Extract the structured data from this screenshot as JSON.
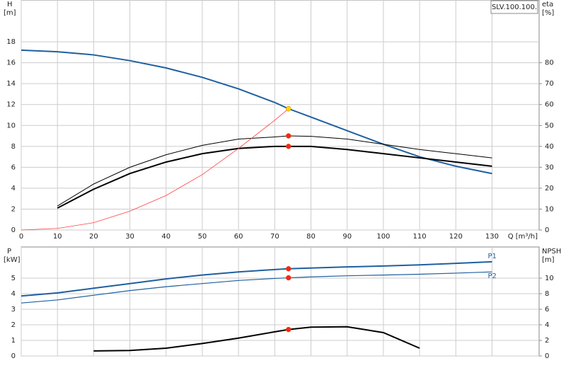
{
  "chart_data": [
    {
      "type": "line",
      "label": "SLV.100.100.",
      "ylabel": "H",
      "ylabel_unit": "[m]",
      "y2label": "eta",
      "y2label_unit": "[%]",
      "xlabel": "Q [m³/h]",
      "x": [
        0,
        10,
        20,
        30,
        40,
        50,
        60,
        70,
        73.8,
        80,
        90,
        100,
        110,
        120,
        130
      ],
      "xlim": [
        0,
        143
      ],
      "xticks": [
        0,
        10,
        20,
        30,
        40,
        50,
        60,
        70,
        80,
        90,
        100,
        110,
        120,
        130
      ],
      "ylim": [
        0,
        22
      ],
      "yticks": [
        0,
        2,
        4,
        6,
        8,
        10,
        12,
        14,
        16,
        18
      ],
      "y2lim": [
        0,
        110
      ],
      "y2ticks": [
        0,
        10,
        20,
        30,
        40,
        50,
        60,
        70,
        80
      ],
      "grid": true,
      "series": [
        {
          "color": "#1f5fa0",
          "width": 2,
          "values": [
            17.2,
            17.05,
            16.75,
            16.2,
            15.5,
            14.6,
            13.5,
            12.2,
            11.6,
            10.8,
            9.5,
            8.2,
            7.0,
            6.1,
            5.4
          ]
        },
        {
          "color": "#000000",
          "width": 1,
          "axis": "y2",
          "values": [
            null,
            11.5,
            22,
            30,
            36,
            40.5,
            43.5,
            44.5,
            45,
            44.8,
            43.5,
            41,
            38.5,
            36.5,
            34.5
          ]
        },
        {
          "color": "#000000",
          "width": 2,
          "axis": "y2",
          "values": [
            null,
            10.5,
            19.5,
            27,
            32.5,
            36.5,
            39,
            40,
            40,
            40,
            38.5,
            36.5,
            34.5,
            32.5,
            30.5
          ]
        },
        {
          "color": "#ff4040",
          "width": 0.8,
          "values": [
            0,
            0.15,
            0.7,
            1.8,
            3.3,
            5.3,
            7.8,
            10.5,
            11.6,
            null,
            null,
            null,
            null,
            null,
            null
          ]
        },
        {
          "type": "scatter",
          "color": "#ffd700",
          "values": [
            null,
            null,
            null,
            null,
            null,
            null,
            null,
            null,
            11.6,
            null,
            null,
            null,
            null,
            null,
            null
          ]
        },
        {
          "type": "scatter",
          "color": "#ff2020",
          "axis": "y2",
          "values": [
            null,
            null,
            null,
            null,
            null,
            null,
            null,
            null,
            45,
            null,
            null,
            null,
            null,
            null,
            null
          ]
        },
        {
          "type": "scatter",
          "color": "#ff2020",
          "axis": "y2",
          "values": [
            null,
            null,
            null,
            null,
            null,
            null,
            null,
            null,
            40,
            null,
            null,
            null,
            null,
            null,
            null
          ]
        }
      ]
    },
    {
      "type": "line",
      "ylabel": "P",
      "ylabel_unit": "[kW]",
      "y2label": "NPSH",
      "y2label_unit": "[m]",
      "x": [
        0,
        10,
        20,
        30,
        40,
        50,
        60,
        70,
        73.8,
        80,
        90,
        100,
        110,
        120,
        130
      ],
      "xlim": [
        0,
        143
      ],
      "xticks": [
        0,
        10,
        20,
        30,
        40,
        50,
        60,
        70,
        80,
        90,
        100,
        110,
        120,
        130
      ],
      "show_xtick_labels": false,
      "ylim": [
        0,
        7
      ],
      "yticks": [
        0,
        1,
        2,
        3,
        4,
        5
      ],
      "y2lim": [
        0,
        14
      ],
      "y2ticks": [
        0,
        2,
        4,
        6,
        8,
        10
      ],
      "grid": true,
      "series": [
        {
          "name": "P1",
          "color": "#1f5fa0",
          "width": 2,
          "values": [
            3.85,
            4.05,
            4.35,
            4.65,
            4.95,
            5.2,
            5.4,
            5.55,
            5.6,
            5.65,
            5.72,
            5.78,
            5.85,
            5.95,
            6.05
          ]
        },
        {
          "name": "P2",
          "color": "#1f5fa0",
          "width": 1.2,
          "values": [
            3.4,
            3.6,
            3.9,
            4.2,
            4.45,
            4.65,
            4.85,
            4.98,
            5.02,
            5.08,
            5.15,
            5.2,
            5.25,
            5.32,
            5.4
          ]
        },
        {
          "color": "#000000",
          "width": 2,
          "axis": "y2",
          "values": [
            null,
            null,
            0.65,
            0.7,
            1.0,
            1.6,
            2.3,
            3.1,
            3.4,
            3.7,
            3.75,
            3.0,
            1.0,
            null,
            null
          ]
        },
        {
          "type": "scatter",
          "color": "#ff2020",
          "values": [
            null,
            null,
            null,
            null,
            null,
            null,
            null,
            null,
            5.6,
            null,
            null,
            null,
            null,
            null,
            null
          ]
        },
        {
          "type": "scatter",
          "color": "#ff2020",
          "values": [
            null,
            null,
            null,
            null,
            null,
            null,
            null,
            null,
            5.02,
            null,
            null,
            null,
            null,
            null,
            null
          ]
        },
        {
          "type": "scatter",
          "color": "#ff2020",
          "axis": "y2",
          "values": [
            null,
            null,
            null,
            null,
            null,
            null,
            null,
            null,
            3.4,
            null,
            null,
            null,
            null,
            null,
            null
          ]
        }
      ]
    }
  ]
}
